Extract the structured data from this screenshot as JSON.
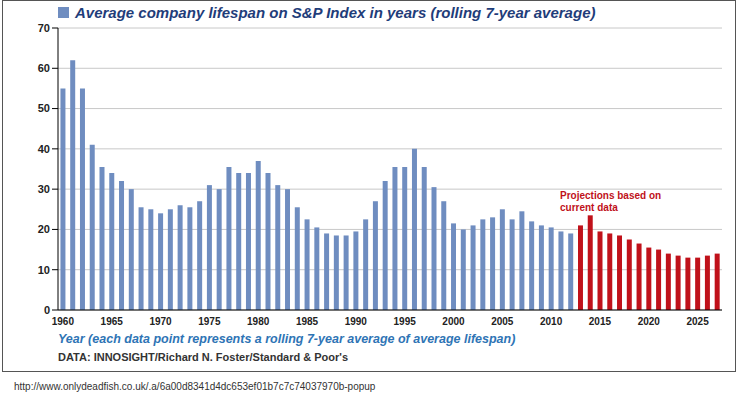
{
  "chart_data": {
    "type": "bar",
    "title": "Average company lifespan on S&P Index in years (rolling 7-year average)",
    "x_label": "Year (each data point represents a rolling 7-year average of average lifespan)",
    "source": "DATA: INNOSIGHT/Richard N. Foster/Standard & Poor's",
    "url": "http://www.onlydeadfish.co.uk/.a/6a00d8341d4dc653ef01b7c7c74037970b-popup",
    "annotation": "Projections based on current data",
    "categories": [
      "1960",
      null,
      null,
      null,
      null,
      "1965",
      null,
      null,
      null,
      null,
      "1970",
      null,
      null,
      null,
      null,
      "1975",
      null,
      null,
      null,
      null,
      "1980",
      null,
      null,
      null,
      null,
      "1985",
      null,
      null,
      null,
      null,
      "1990",
      null,
      null,
      null,
      null,
      "1995",
      null,
      null,
      null,
      null,
      "2000",
      null,
      null,
      null,
      null,
      "2005",
      null,
      null,
      null,
      null,
      "2010",
      null,
      null,
      null,
      null,
      "2015",
      null,
      null,
      null,
      null,
      "2020",
      null,
      null,
      null,
      null,
      "2025",
      null,
      null
    ],
    "values": [
      55,
      62,
      55,
      41,
      35.5,
      34,
      32,
      30,
      25.5,
      25,
      24,
      25,
      26,
      25.5,
      27,
      31,
      30,
      35.5,
      34,
      34,
      37,
      34,
      31,
      30,
      25.5,
      22.5,
      20.5,
      19,
      18.5,
      18.5,
      19.5,
      22.5,
      27,
      32,
      35.5,
      35.5,
      40,
      35.5,
      30.5,
      27,
      21.5,
      20,
      21,
      22.5,
      23,
      25,
      22.5,
      24.5,
      22,
      21,
      20.5,
      19.5,
      19,
      21,
      23.5,
      19.5,
      19,
      18.5,
      17.5,
      16.5,
      15.5,
      15,
      14,
      13.5,
      13,
      13,
      13.5,
      14
    ],
    "colors": [
      "#6f8dc0",
      "#6f8dc0",
      "#6f8dc0",
      "#6f8dc0",
      "#6f8dc0",
      "#6f8dc0",
      "#6f8dc0",
      "#6f8dc0",
      "#6f8dc0",
      "#6f8dc0",
      "#6f8dc0",
      "#6f8dc0",
      "#6f8dc0",
      "#6f8dc0",
      "#6f8dc0",
      "#6f8dc0",
      "#6f8dc0",
      "#6f8dc0",
      "#6f8dc0",
      "#6f8dc0",
      "#6f8dc0",
      "#6f8dc0",
      "#6f8dc0",
      "#6f8dc0",
      "#6f8dc0",
      "#6f8dc0",
      "#6f8dc0",
      "#6f8dc0",
      "#6f8dc0",
      "#6f8dc0",
      "#6f8dc0",
      "#6f8dc0",
      "#6f8dc0",
      "#6f8dc0",
      "#6f8dc0",
      "#6f8dc0",
      "#6f8dc0",
      "#6f8dc0",
      "#6f8dc0",
      "#6f8dc0",
      "#6f8dc0",
      "#6f8dc0",
      "#6f8dc0",
      "#6f8dc0",
      "#6f8dc0",
      "#6f8dc0",
      "#6f8dc0",
      "#6f8dc0",
      "#6f8dc0",
      "#6f8dc0",
      "#6f8dc0",
      "#6f8dc0",
      "#6f8dc0",
      "#c0111a",
      "#c0111a",
      "#c0111a",
      "#c0111a",
      "#c0111a",
      "#c0111a",
      "#c0111a",
      "#c0111a",
      "#c0111a",
      "#c0111a",
      "#c0111a",
      "#c0111a",
      "#c0111a",
      "#c0111a",
      "#c0111a"
    ],
    "ylim": [
      0,
      70
    ],
    "yticks": [
      0,
      10,
      20,
      30,
      40,
      50,
      60,
      70
    ],
    "grid": true
  }
}
